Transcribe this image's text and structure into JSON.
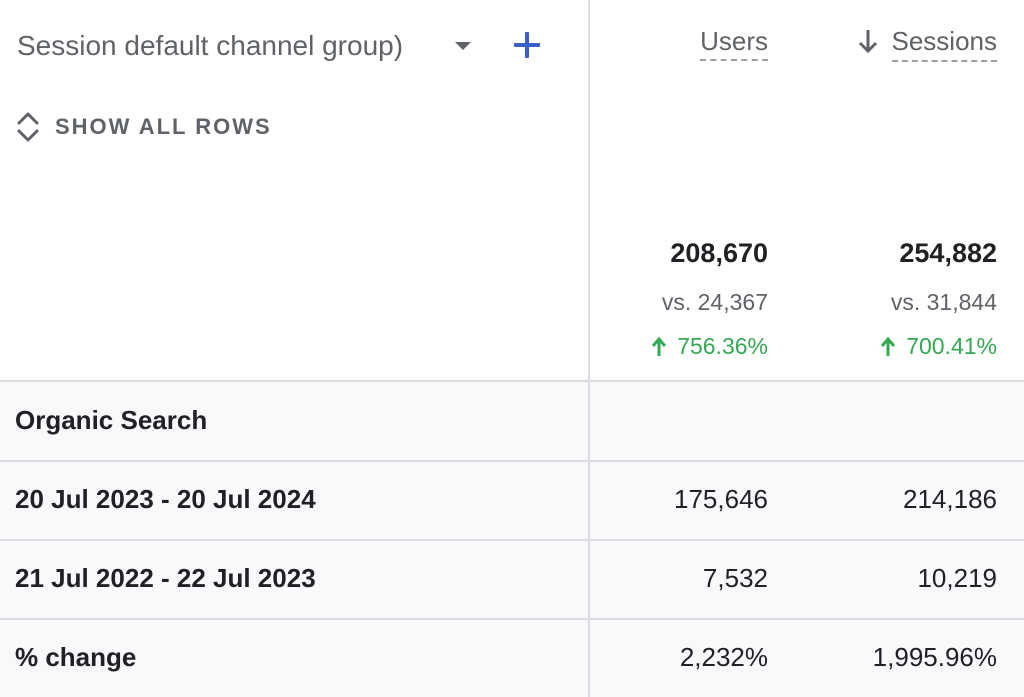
{
  "header": {
    "dimension_label": "Session default channel group)",
    "show_all_rows": "SHOW ALL ROWS"
  },
  "columns": {
    "users": "Users",
    "sessions": "Sessions"
  },
  "totals": {
    "users": {
      "value": "208,670",
      "vs": "vs. 24,367",
      "change": "756.36%"
    },
    "sessions": {
      "value": "254,882",
      "vs": "vs. 31,844",
      "change": "700.41%"
    }
  },
  "rows": [
    {
      "label": "Organic Search",
      "users": "",
      "sessions": ""
    },
    {
      "label": "20 Jul 2023 - 20 Jul 2024",
      "users": "175,646",
      "sessions": "214,186"
    },
    {
      "label": "21 Jul 2022 - 22 Jul 2023",
      "users": "7,532",
      "sessions": "10,219"
    },
    {
      "label": "% change",
      "users": "2,232%",
      "sessions": "1,995.96%"
    }
  ],
  "colors": {
    "accent": "#3b5fc9",
    "positive": "#34a853",
    "muted": "#5f6368",
    "row_bg": "#f8f9fa",
    "border": "#dadce0"
  },
  "icons": {
    "add": "plus-icon",
    "dropdown": "caret-down-icon",
    "expand": "unfold-icon",
    "sort": "arrow-down-icon",
    "change": "arrow-up-icon"
  }
}
